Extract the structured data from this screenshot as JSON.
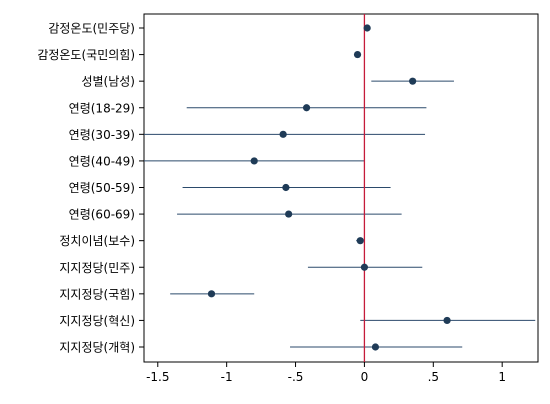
{
  "chart_data": {
    "type": "scatter",
    "subtype": "coefficient-plot",
    "title": "",
    "xlabel": "",
    "ylabel": "",
    "xlim": [
      -1.6,
      1.26
    ],
    "xticks": [
      -1.5,
      -1,
      -0.5,
      0,
      0.5,
      1
    ],
    "xtick_labels": [
      "-1.5",
      "-1",
      "-.5",
      "0",
      ".5",
      "1"
    ],
    "reference_line": {
      "x": 0,
      "color": "#c51b3a"
    },
    "grid": false,
    "legend": "none",
    "point_color": "#1f3b57",
    "ci_color": "#2b4a6b",
    "rows": [
      {
        "label": "감정온도(민주당)",
        "estimate": 0.02,
        "ci_low": 0.01,
        "ci_high": 0.03
      },
      {
        "label": "감정온도(국민의힘)",
        "estimate": -0.05,
        "ci_low": -0.06,
        "ci_high": -0.04
      },
      {
        "label": "성별(남성)",
        "estimate": 0.35,
        "ci_low": 0.05,
        "ci_high": 0.65
      },
      {
        "label": "연령(18-29)",
        "estimate": -0.42,
        "ci_low": -1.29,
        "ci_high": 0.45
      },
      {
        "label": "연령(30-39)",
        "estimate": -0.59,
        "ci_low": -1.6,
        "ci_high": 0.44
      },
      {
        "label": "연령(40-49)",
        "estimate": -0.8,
        "ci_low": -1.6,
        "ci_high": 0.0
      },
      {
        "label": "연령(50-59)",
        "estimate": -0.57,
        "ci_low": -1.32,
        "ci_high": 0.19
      },
      {
        "label": "연령(60-69)",
        "estimate": -0.55,
        "ci_low": -1.36,
        "ci_high": 0.27
      },
      {
        "label": "정치이념(보수)",
        "estimate": -0.03,
        "ci_low": -0.06,
        "ci_high": -0.01
      },
      {
        "label": "지지정당(민주)",
        "estimate": 0.0,
        "ci_low": -0.41,
        "ci_high": 0.42
      },
      {
        "label": "지지정당(국힘)",
        "estimate": -1.11,
        "ci_low": -1.41,
        "ci_high": -0.8
      },
      {
        "label": "지지정당(혁신)",
        "estimate": 0.6,
        "ci_low": -0.03,
        "ci_high": 1.24
      },
      {
        "label": "지지정당(개혁)",
        "estimate": 0.08,
        "ci_low": -0.54,
        "ci_high": 0.71
      }
    ]
  }
}
